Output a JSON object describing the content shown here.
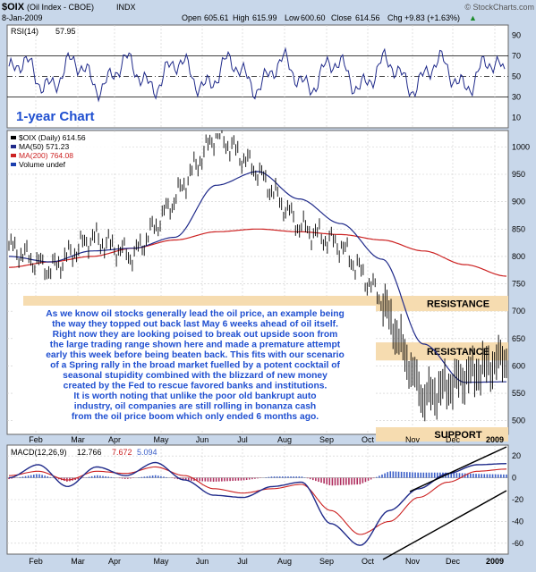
{
  "header": {
    "symbol": "$OIX",
    "name": "(Oil Index - CBOE)",
    "exchange": "INDX",
    "brand": "© StockCharts.com",
    "date": "8-Jan-2009",
    "open_label": "Open",
    "open": "605.61",
    "high_label": "High",
    "high": "615.99",
    "low_label": "Low",
    "low": "600.60",
    "close_label": "Close",
    "close": "614.56",
    "chg_label": "Chg",
    "chg": "+9.83 (+1.63%)",
    "chg_arrow": "▲"
  },
  "rsi": {
    "label": "RSI(14)",
    "value": "57.95",
    "ticks": [
      "90",
      "70",
      "50",
      "30",
      "10"
    ],
    "ylim": [
      0,
      100
    ],
    "levels": [
      70,
      50,
      30
    ]
  },
  "main": {
    "chart_title": "1-year Chart",
    "legend": [
      {
        "label": "$OIX (Daily) 614.56",
        "color": "#000000"
      },
      {
        "label": "MA(50) 571.23",
        "color": "#1f2a8a"
      },
      {
        "label": "MA(200) 764.08",
        "color": "#cc2222"
      },
      {
        "label": "Volume undef",
        "color": "#1c3fae"
      }
    ],
    "ticks": [
      "1000",
      "950",
      "900",
      "850",
      "800",
      "750",
      "700",
      "650",
      "600",
      "550",
      "500"
    ],
    "ylim": [
      475,
      1030
    ],
    "zones": [
      {
        "label": "RESISTANCE",
        "from": 700,
        "to": 728
      },
      {
        "label": "RESISTANCE",
        "from": 610,
        "to": 643
      },
      {
        "label": "SUPPORT",
        "from": 462,
        "to": 488
      }
    ],
    "commentary": [
      "As we know oil stocks generally lead the oil price, an example being",
      "the way they topped out back last May 6 weeks ahead of oil itself.",
      "Right now they are looking poised to break out upside soon from",
      "the large trading range shown here and made a premature attempt",
      "early this week before being beaten back. This fits with our scenario",
      "of a Spring rally in the broad market fuelled by a potent cocktail of",
      "seasonal stupidity combined with the blizzard of new money",
      "created by the Fed to rescue favored banks and institutions.",
      "It is worth noting that unlike the poor old bankrupt auto",
      "industry, oil companies are still rolling in bonanza cash",
      "from the oil price boom which only ended 6 months ago."
    ]
  },
  "macd": {
    "label": "MACD(12,26,9)",
    "v1": "12.766",
    "v2": "7.672",
    "v3": "5.094",
    "ticks": [
      "20",
      "0",
      "-20",
      "-40",
      "-60"
    ],
    "ylim": [
      -70,
      30
    ]
  },
  "months": [
    "Feb",
    "Mar",
    "Apr",
    "May",
    "Jun",
    "Jul",
    "Aug",
    "Sep",
    "Oct",
    "Nov",
    "Dec",
    "2009"
  ],
  "colors": {
    "background": "#c8d7ea",
    "panel": "#ffffff",
    "zone": "#f6dcb0",
    "commentary": "#ffffff",
    "title_blue": "#1f4fd0",
    "ma50": "#1f2a8a",
    "ma200": "#cc2222",
    "signal": "#cc2222",
    "hist_pos": "#3b5fc8",
    "hist_neg": "#b03060",
    "price": "#000000",
    "chg": "#1a8a2a"
  },
  "chart_data": {
    "type": "line",
    "title": "$OIX (Oil Index - CBOE)",
    "x": [
      "Jan",
      "Feb",
      "Mar",
      "Apr",
      "May",
      "Jun",
      "Jul",
      "Aug",
      "Sep",
      "Oct",
      "Nov",
      "Dec",
      "Jan"
    ],
    "series": [
      {
        "name": "$OIX (Daily)",
        "values": [
          818,
          775,
          835,
          800,
          905,
          1025,
          955,
          855,
          820,
          720,
          540,
          580,
          615
        ]
      },
      {
        "name": "MA(50)",
        "values": [
          800,
          790,
          810,
          815,
          835,
          930,
          955,
          905,
          860,
          795,
          640,
          570,
          571
        ]
      },
      {
        "name": "MA(200)",
        "values": [
          780,
          790,
          800,
          815,
          830,
          845,
          850,
          845,
          840,
          830,
          810,
          785,
          764
        ]
      }
    ],
    "ylim": [
      475,
      1030
    ],
    "levels": {
      "resistance": [
        700,
        628
      ],
      "support": [
        475
      ]
    }
  }
}
